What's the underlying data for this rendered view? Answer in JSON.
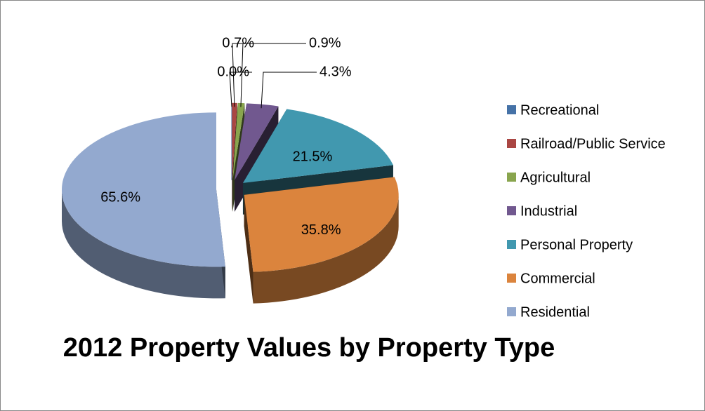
{
  "chart_data": {
    "type": "pie",
    "title": "2012 Property Values by Property Type",
    "categories": [
      "Recreational",
      "Railroad/Public Service",
      "Agricultural",
      "Industrial",
      "Personal Property",
      "Commercial",
      "Residential"
    ],
    "values": [
      0.0,
      0.7,
      0.9,
      4.3,
      21.5,
      35.8,
      65.6
    ],
    "value_labels": [
      "0.0%",
      "0.7%",
      "0.9%",
      "4.3%",
      "21.5%",
      "35.8%",
      "65.6%"
    ],
    "colors": [
      "#4572A7",
      "#AA4643",
      "#89A54E",
      "#71588F",
      "#4198AF",
      "#DB843D",
      "#93A9CF"
    ],
    "legend": "right"
  }
}
